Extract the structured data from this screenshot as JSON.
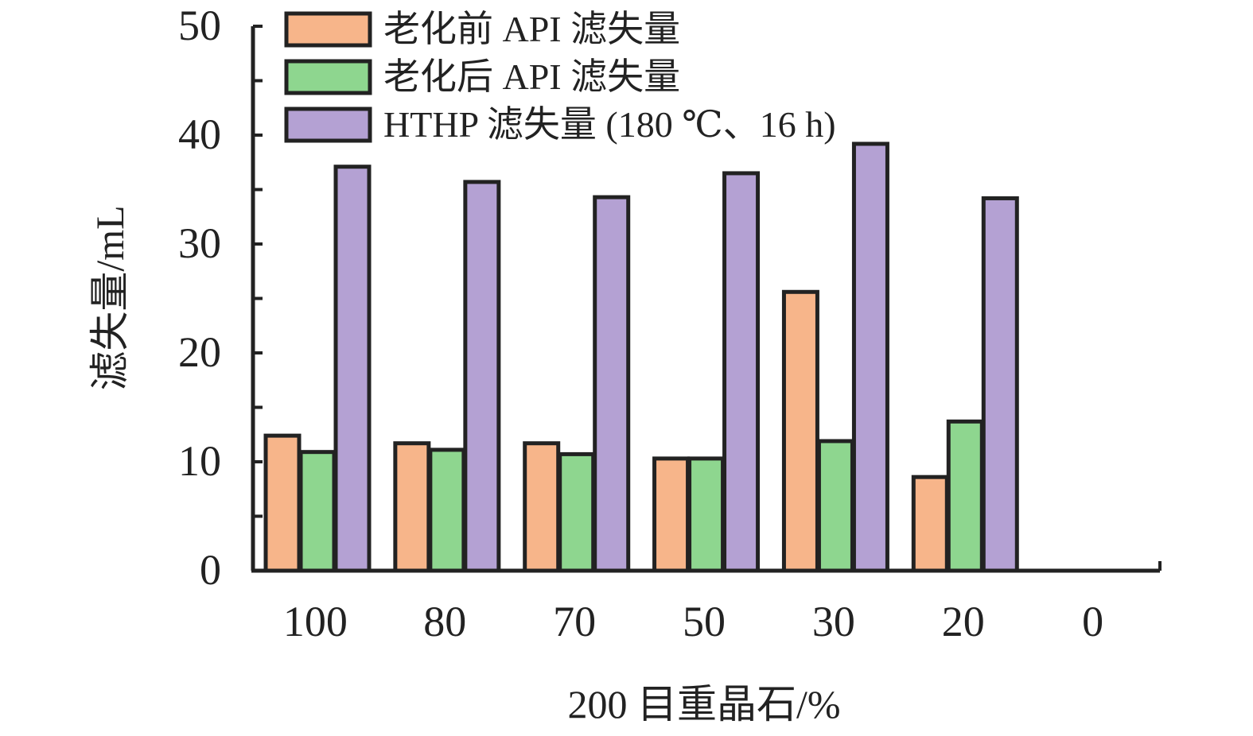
{
  "chart_data": {
    "type": "bar",
    "title": "",
    "xlabel": "200 目重晶石/%",
    "ylabel": "滤失量/mL",
    "ylim": [
      0,
      50
    ],
    "yticks": [
      "0",
      "10",
      "20",
      "30",
      "40",
      "50"
    ],
    "categories": [
      "100",
      "80",
      "70",
      "50",
      "30",
      "20",
      "0"
    ],
    "series": [
      {
        "name": "老化前 API 滤失量",
        "color": "#f7b58a",
        "values": [
          12.4,
          11.7,
          11.7,
          10.3,
          25.6,
          8.6,
          null
        ]
      },
      {
        "name": "老化后 API 滤失量",
        "color": "#8ed68f",
        "values": [
          10.9,
          11.1,
          10.7,
          10.3,
          11.9,
          13.7,
          null
        ]
      },
      {
        "name": "HTHP 滤失量 (180 ℃、16 h)",
        "color": "#b4a1d3",
        "values": [
          37.1,
          35.7,
          34.3,
          36.5,
          39.2,
          34.2,
          null
        ]
      }
    ],
    "grid": false,
    "legend": "top-left"
  }
}
